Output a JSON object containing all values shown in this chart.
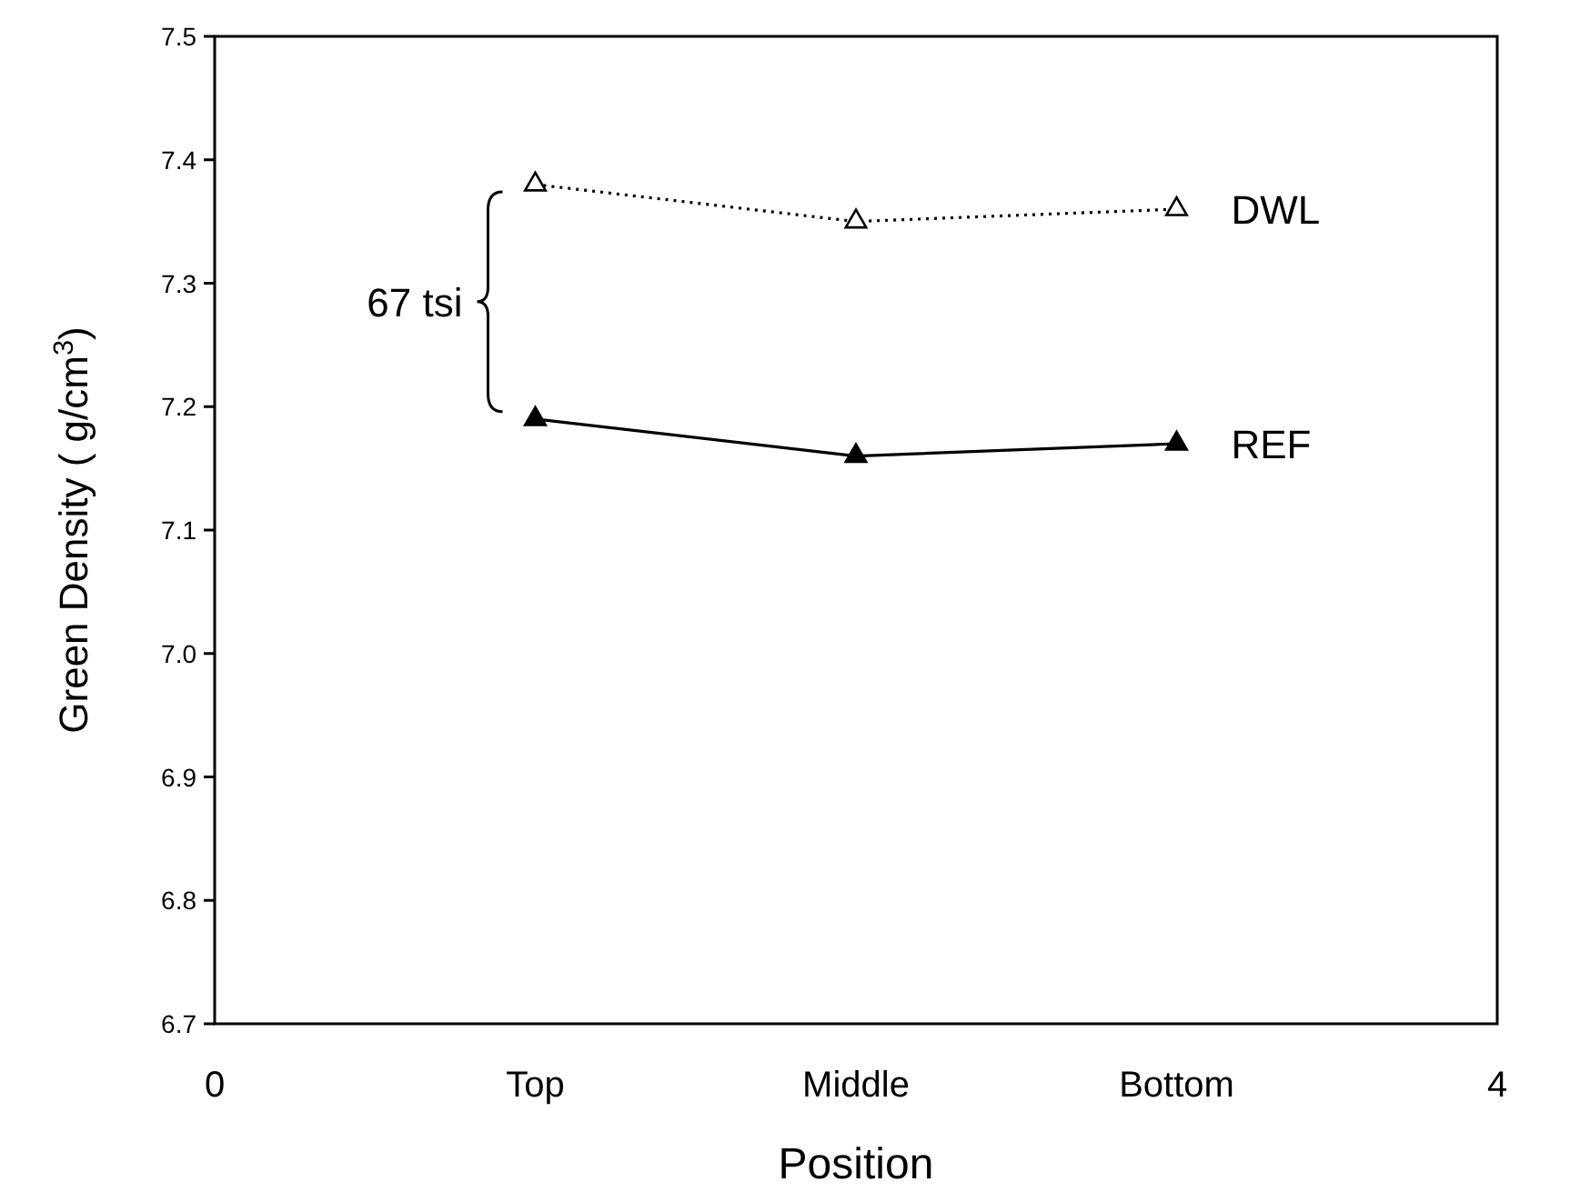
{
  "chart_data": {
    "type": "line",
    "xlabel": "Position",
    "ylabel": "Green Density ( g/cm$^{3}$)",
    "x": [
      1,
      2,
      3
    ],
    "xlim": [
      0,
      4
    ],
    "xticks": [
      0,
      {
        "value": 1,
        "label": "Top"
      },
      {
        "value": 2,
        "label": "Middle"
      },
      {
        "value": 3,
        "label": "Bottom"
      },
      4
    ],
    "ylim": [
      6.7,
      7.5
    ],
    "yticks": [
      6.7,
      6.8,
      6.9,
      {
        "value": 7,
        "label": "7.0"
      },
      7.1,
      7.2,
      7.3,
      7.4,
      7.5
    ],
    "marker": "triangle",
    "grid": false,
    "annotations": [
      "67 tsi"
    ],
    "series": [
      {
        "name": "DWL",
        "color": "#000000",
        "line_style": "dotted",
        "values": [
          7.38,
          7.35,
          7.36
        ]
      },
      {
        "name": "REF",
        "color": "#000000",
        "line_style": "solid",
        "values": [
          7.19,
          7.16,
          7.17
        ]
      }
    ]
  }
}
